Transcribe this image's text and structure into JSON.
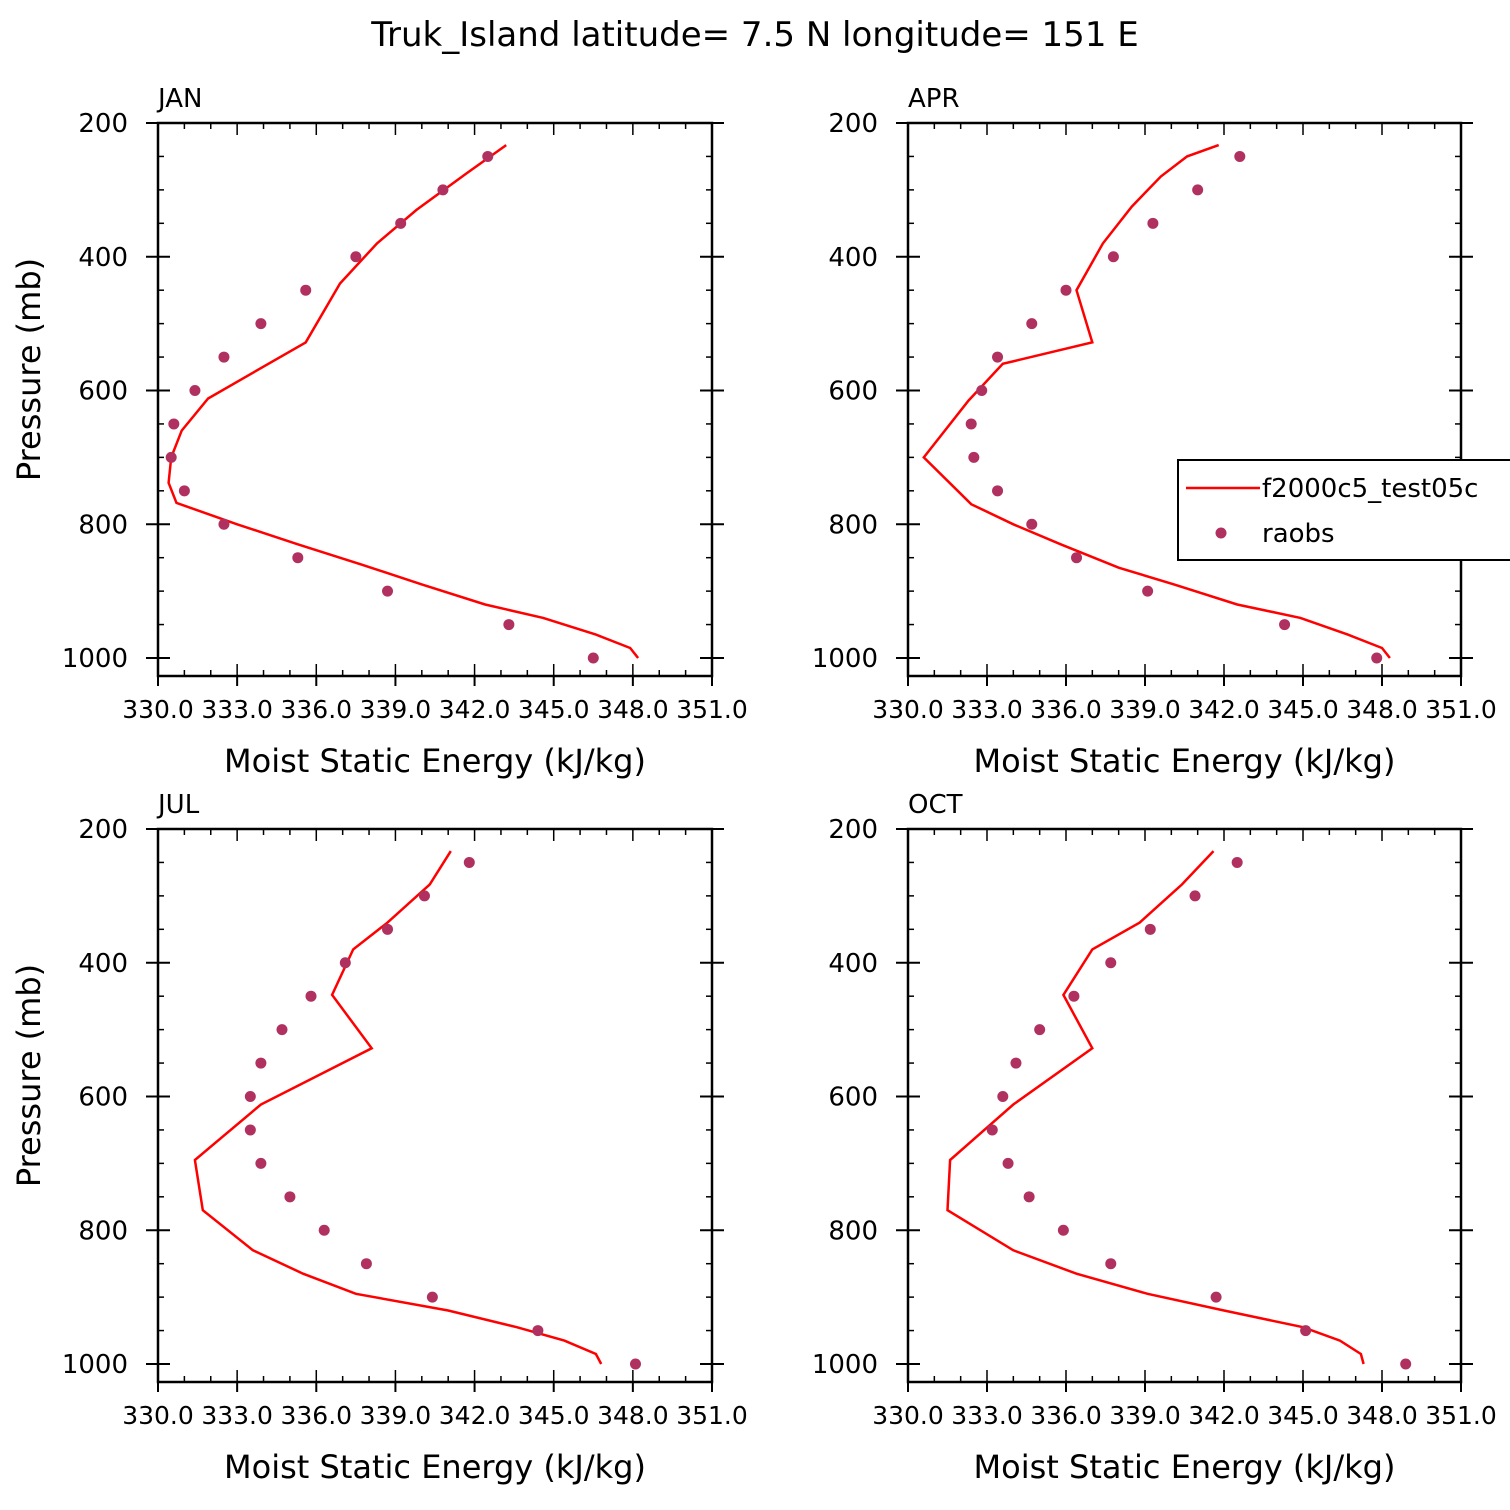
{
  "figure": {
    "title": "Truk_Island  latitude= 7.5 N longitude= 151 E"
  },
  "legend": {
    "model_label": "f2000c5_test05c",
    "obs_label": "raobs",
    "placement": "right side of APR panel"
  },
  "colors": {
    "model_line": "#ff0000",
    "obs_marker": "#b03060",
    "axes": "#000000",
    "background": "#ffffff"
  },
  "chart_data": [
    {
      "type": "line",
      "title": "JAN",
      "xlabel": "Moist Static Energy (kJ/kg)",
      "ylabel": "Pressure (mb)",
      "xlim": [
        330,
        351
      ],
      "ylim": [
        200,
        1000
      ],
      "y_inverted": true,
      "xtick_labels": [
        "330.0",
        "333.0",
        "336.0",
        "339.0",
        "342.0",
        "345.0",
        "348.0",
        "351.0"
      ],
      "ytick_labels": [
        "200",
        "400",
        "600",
        "800",
        "1000"
      ],
      "series": [
        {
          "name": "f2000c5_test05c",
          "style": "line",
          "x": [
            348.2,
            347.9,
            346.6,
            344.6,
            342.4,
            340.0,
            337.7,
            335.3,
            333.0,
            330.7,
            330.4,
            330.5,
            330.9,
            331.9,
            335.6,
            336.9,
            338.3,
            339.8,
            341.7,
            343.2
          ],
          "y": [
            1000,
            985,
            965,
            940,
            920,
            890,
            860,
            830,
            800,
            768,
            738,
            700,
            660,
            612,
            528,
            440,
            380,
            330,
            275,
            233
          ]
        },
        {
          "name": "raobs",
          "style": "markers",
          "x": [
            346.5,
            343.3,
            338.7,
            335.3,
            332.5,
            331.0,
            330.5,
            330.6,
            331.4,
            332.5,
            333.9,
            335.6,
            337.5,
            339.2,
            340.8,
            342.5
          ],
          "y": [
            1000,
            950,
            900,
            850,
            800,
            750,
            700,
            650,
            600,
            550,
            500,
            450,
            400,
            350,
            300,
            250
          ]
        }
      ]
    },
    {
      "type": "line",
      "title": "APR",
      "xlabel": "Moist Static Energy (kJ/kg)",
      "ylabel": "",
      "xlim": [
        330,
        351
      ],
      "ylim": [
        200,
        1000
      ],
      "y_inverted": true,
      "xtick_labels": [
        "330.0",
        "333.0",
        "336.0",
        "339.0",
        "342.0",
        "345.0",
        "348.0",
        "351.0"
      ],
      "ytick_labels": [
        "200",
        "400",
        "600",
        "800",
        "1000"
      ],
      "series": [
        {
          "name": "f2000c5_test05c",
          "style": "line",
          "x": [
            348.3,
            348.0,
            346.7,
            344.9,
            342.5,
            340.1,
            338.0,
            335.8,
            334.0,
            332.4,
            330.6,
            332.3,
            333.6,
            337.0,
            336.4,
            337.4,
            338.5,
            339.6,
            340.6,
            341.8
          ],
          "y": [
            1000,
            985,
            965,
            940,
            920,
            890,
            865,
            830,
            800,
            770,
            700,
            615,
            560,
            528,
            450,
            380,
            325,
            280,
            250,
            233
          ]
        },
        {
          "name": "raobs",
          "style": "markers",
          "x": [
            347.8,
            344.3,
            339.1,
            336.4,
            334.7,
            333.4,
            332.5,
            332.4,
            332.8,
            333.4,
            334.7,
            336.0,
            337.8,
            339.3,
            341.0,
            342.6
          ],
          "y": [
            1000,
            950,
            900,
            850,
            800,
            750,
            700,
            650,
            600,
            550,
            500,
            450,
            400,
            350,
            300,
            250
          ]
        }
      ]
    },
    {
      "type": "line",
      "title": "JUL",
      "xlabel": "Moist Static Energy (kJ/kg)",
      "ylabel": "Pressure (mb)",
      "xlim": [
        330,
        351
      ],
      "ylim": [
        200,
        1000
      ],
      "y_inverted": true,
      "xtick_labels": [
        "330.0",
        "333.0",
        "336.0",
        "339.0",
        "342.0",
        "345.0",
        "348.0",
        "351.0"
      ],
      "ytick_labels": [
        "200",
        "400",
        "600",
        "800",
        "1000"
      ],
      "series": [
        {
          "name": "f2000c5_test05c",
          "style": "line",
          "x": [
            346.8,
            346.6,
            345.4,
            343.6,
            341.0,
            337.5,
            335.5,
            333.6,
            331.7,
            331.4,
            333.9,
            338.1,
            336.6,
            337.4,
            338.7,
            340.3,
            341.1
          ],
          "y": [
            1000,
            985,
            965,
            945,
            920,
            895,
            865,
            830,
            770,
            695,
            612,
            528,
            448,
            380,
            340,
            283,
            233
          ]
        },
        {
          "name": "raobs",
          "style": "markers",
          "x": [
            348.1,
            344.4,
            340.4,
            337.9,
            336.3,
            335.0,
            333.9,
            333.5,
            333.5,
            333.9,
            334.7,
            335.8,
            337.1,
            338.7,
            340.1,
            341.8
          ],
          "y": [
            1000,
            950,
            900,
            850,
            800,
            750,
            700,
            650,
            600,
            550,
            500,
            450,
            400,
            350,
            300,
            250
          ]
        }
      ]
    },
    {
      "type": "line",
      "title": "OCT",
      "xlabel": "Moist Static Energy (kJ/kg)",
      "ylabel": "",
      "xlim": [
        330,
        351
      ],
      "ylim": [
        200,
        1000
      ],
      "y_inverted": true,
      "xtick_labels": [
        "330.0",
        "333.0",
        "336.0",
        "339.0",
        "342.0",
        "345.0",
        "348.0",
        "351.0"
      ],
      "ytick_labels": [
        "200",
        "400",
        "600",
        "800",
        "1000"
      ],
      "series": [
        {
          "name": "f2000c5_test05c",
          "style": "line",
          "x": [
            347.3,
            347.2,
            346.4,
            345.0,
            342.0,
            339.1,
            336.4,
            334.0,
            331.5,
            331.6,
            334.0,
            337.0,
            335.9,
            337.0,
            338.8,
            340.4,
            341.6
          ],
          "y": [
            1000,
            985,
            965,
            945,
            920,
            895,
            865,
            830,
            770,
            695,
            612,
            528,
            448,
            380,
            340,
            283,
            233
          ]
        },
        {
          "name": "raobs",
          "style": "markers",
          "x": [
            348.9,
            345.1,
            341.7,
            337.7,
            335.9,
            334.6,
            333.8,
            333.2,
            333.6,
            334.1,
            335.0,
            336.3,
            337.7,
            339.2,
            340.9,
            342.5
          ],
          "y": [
            1000,
            950,
            900,
            850,
            800,
            750,
            700,
            650,
            600,
            550,
            500,
            450,
            400,
            350,
            300,
            250
          ]
        }
      ]
    }
  ]
}
